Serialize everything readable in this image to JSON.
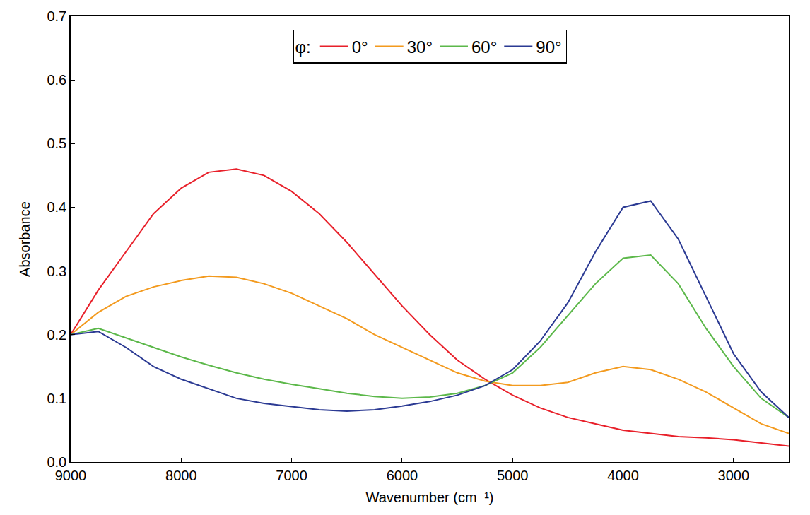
{
  "chart_data": {
    "type": "line",
    "x_label": "Wavenumber (cm⁻¹)",
    "y_label": "Absorbance",
    "legend_title": "φ:",
    "legend": "top",
    "grid": false,
    "xlim": [
      9000,
      2500
    ],
    "xticks": [
      9000,
      8000,
      7000,
      6000,
      5000,
      4000,
      3000
    ],
    "ylim": [
      0,
      0.7
    ],
    "yticks": [
      {
        "value": 0,
        "label": "0.0"
      },
      0.1,
      0.2,
      0.3,
      0.4,
      0.5,
      0.6,
      0.7
    ],
    "x": [
      9000,
      8750,
      8500,
      8250,
      8000,
      7750,
      7500,
      7250,
      7000,
      6750,
      6500,
      6250,
      6000,
      5750,
      5500,
      5250,
      5000,
      4750,
      4500,
      4250,
      4000,
      3750,
      3500,
      3250,
      3000,
      2750,
      2500
    ],
    "series": [
      {
        "name": "0°",
        "color": "#e8202a",
        "values": [
          0.2,
          0.27,
          0.33,
          0.39,
          0.43,
          0.455,
          0.46,
          0.45,
          0.425,
          0.39,
          0.345,
          0.295,
          0.245,
          0.2,
          0.16,
          0.13,
          0.105,
          0.085,
          0.07,
          0.06,
          0.05,
          0.045,
          0.04,
          0.038,
          0.035,
          0.03,
          0.025
        ]
      },
      {
        "name": "30°",
        "color": "#f39a1e",
        "values": [
          0.2,
          0.235,
          0.26,
          0.275,
          0.285,
          0.292,
          0.29,
          0.28,
          0.265,
          0.245,
          0.225,
          0.2,
          0.18,
          0.16,
          0.14,
          0.127,
          0.12,
          0.12,
          0.125,
          0.14,
          0.15,
          0.145,
          0.13,
          0.11,
          0.085,
          0.06,
          0.045
        ]
      },
      {
        "name": "60°",
        "color": "#5cb84a",
        "values": [
          0.2,
          0.21,
          0.195,
          0.18,
          0.165,
          0.152,
          0.14,
          0.13,
          0.122,
          0.115,
          0.108,
          0.103,
          0.1,
          0.102,
          0.108,
          0.12,
          0.14,
          0.18,
          0.23,
          0.28,
          0.32,
          0.325,
          0.28,
          0.21,
          0.15,
          0.1,
          0.07
        ]
      },
      {
        "name": "90°",
        "color": "#2b3a93",
        "values": [
          0.2,
          0.205,
          0.18,
          0.15,
          0.13,
          0.115,
          0.1,
          0.092,
          0.087,
          0.082,
          0.08,
          0.082,
          0.088,
          0.095,
          0.105,
          0.12,
          0.145,
          0.19,
          0.25,
          0.33,
          0.4,
          0.41,
          0.35,
          0.26,
          0.17,
          0.11,
          0.07
        ]
      }
    ]
  }
}
